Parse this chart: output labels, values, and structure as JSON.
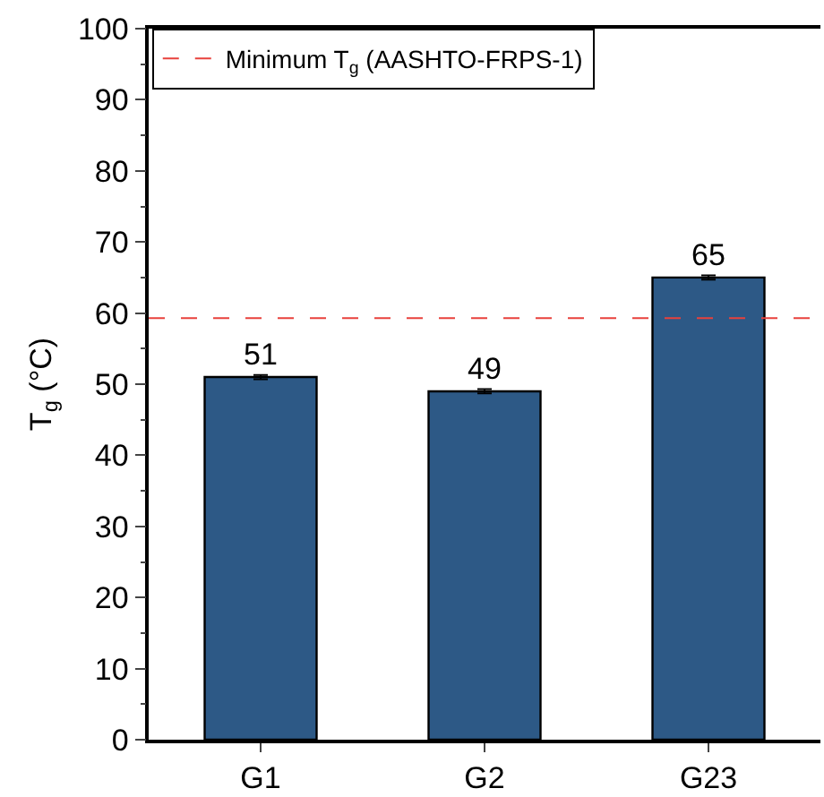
{
  "chart_data": {
    "type": "bar",
    "ylabel": "T$_{g}$ (°C)",
    "categories": [
      "G1",
      "G2",
      "G23"
    ],
    "values": [
      51,
      49,
      65
    ],
    "errors": [
      0.3,
      0.3,
      0.3
    ],
    "color": "#2d5986",
    "data_labels": true,
    "ylim": [
      0,
      100
    ],
    "yticks": [
      0,
      10,
      20,
      30,
      40,
      50,
      60,
      70,
      80,
      90,
      100
    ],
    "grid": false,
    "legend": "top left",
    "ref_lines": [
      {
        "axis": "y",
        "value": 59.3,
        "label": "Minimum T$_{g}$ (AASHTO-FRPS-1)",
        "color": "#e8413c",
        "line_style": "dashed"
      }
    ]
  }
}
